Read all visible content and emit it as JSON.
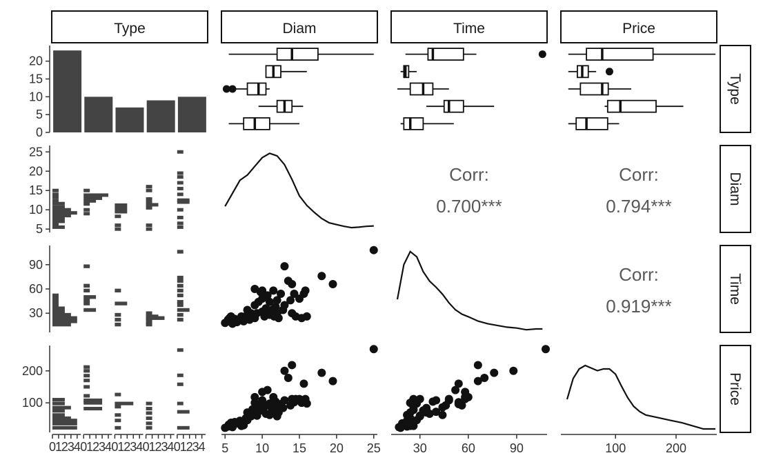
{
  "chart_data": {
    "type": "pairs",
    "variables": [
      "Type",
      "Diam",
      "Time",
      "Price"
    ],
    "colors": {
      "bar": "#444444",
      "point": "#111111",
      "line": "#111111",
      "corr_text": "#595959"
    },
    "type_counts": {
      "categories": [
        "0",
        "1",
        "2",
        "3",
        "4"
      ],
      "values": [
        23,
        10,
        7,
        9,
        10
      ],
      "ylim": [
        0,
        24
      ],
      "yticks": [
        "0",
        "5",
        "10",
        "15",
        "20"
      ]
    },
    "boxplots": {
      "Diam": {
        "xlim": [
          4.7,
          25.3
        ],
        "xticks": [
          "5",
          "10",
          "15",
          "20",
          "25"
        ],
        "boxes": [
          {
            "q1": 7.5,
            "median": 9,
            "q3": 11,
            "lo": 5.5,
            "hi": 15,
            "outliers": []
          },
          {
            "q1": 12,
            "median": 13,
            "q3": 14,
            "lo": 9.5,
            "hi": 15.5,
            "outliers": []
          },
          {
            "q1": 8,
            "median": 9.5,
            "q3": 10.5,
            "lo": 5,
            "hi": 11,
            "outliers": [
              6,
              5.2
            ]
          },
          {
            "q1": 10.5,
            "median": 11.5,
            "q3": 12.5,
            "lo": 10.5,
            "hi": 16,
            "outliers": []
          },
          {
            "q1": 12,
            "median": 14,
            "q3": 17.5,
            "lo": 5.5,
            "hi": 25,
            "outliers": []
          }
        ]
      },
      "Time": {
        "xlim": [
          13,
          108
        ],
        "xticks": [
          "30",
          "60",
          "90"
        ],
        "boxes": [
          {
            "q1": 20,
            "median": 24,
            "q3": 32,
            "lo": 18,
            "hi": 51,
            "outliers": []
          },
          {
            "q1": 45,
            "median": 48,
            "q3": 57,
            "lo": 34,
            "hi": 76,
            "outliers": []
          },
          {
            "q1": 24,
            "median": 32,
            "q3": 38,
            "lo": 16,
            "hi": 48,
            "outliers": []
          },
          {
            "q1": 20,
            "median": 21,
            "q3": 23,
            "lo": 18,
            "hi": 28,
            "outliers": []
          },
          {
            "q1": 35,
            "median": 38,
            "q3": 57,
            "lo": 21,
            "hi": 65,
            "outliers": [
              106
            ]
          }
        ]
      },
      "Price": {
        "xlim": [
          12,
          265
        ],
        "xticks": [
          "100",
          "200"
        ],
        "boxes": [
          {
            "q1": 35,
            "median": 52,
            "q3": 87,
            "lo": 22,
            "hi": 106,
            "outliers": []
          },
          {
            "q1": 87,
            "median": 108,
            "q3": 167,
            "lo": 82,
            "hi": 212,
            "outliers": []
          },
          {
            "q1": 42,
            "median": 78,
            "q3": 88,
            "lo": 22,
            "hi": 126,
            "outliers": []
          },
          {
            "q1": 37,
            "median": 45,
            "q3": 55,
            "lo": 22,
            "hi": 68,
            "outliers": [
              90
            ]
          },
          {
            "q1": 52,
            "median": 78,
            "q3": 162,
            "lo": 22,
            "hi": 265,
            "outliers": []
          }
        ]
      }
    },
    "axes": {
      "Diam": {
        "ylim": [
          4.5,
          26.3
        ],
        "yticks": [
          "5",
          "10",
          "15",
          "20",
          "25"
        ]
      },
      "Time": {
        "ylim": [
          8,
          112
        ],
        "yticks": [
          "30",
          "60",
          "90"
        ]
      },
      "Price": {
        "ylim": [
          12,
          275
        ],
        "yticks": [
          "100",
          "200"
        ]
      }
    },
    "correlations": [
      {
        "row": "Diam",
        "col": "Time",
        "label": "Corr:",
        "value": "0.700***"
      },
      {
        "row": "Diam",
        "col": "Price",
        "label": "Corr:",
        "value": "0.794***"
      },
      {
        "row": "Time",
        "col": "Price",
        "label": "Corr:",
        "value": "0.919***"
      }
    ],
    "densities": {
      "Diam": [
        [
          5,
          0.3
        ],
        [
          6,
          0.45
        ],
        [
          7,
          0.6
        ],
        [
          8,
          0.66
        ],
        [
          9,
          0.76
        ],
        [
          10,
          0.86
        ],
        [
          11,
          0.91
        ],
        [
          12,
          0.88
        ],
        [
          13,
          0.78
        ],
        [
          14,
          0.61
        ],
        [
          15,
          0.42
        ],
        [
          16,
          0.31
        ],
        [
          17,
          0.23
        ],
        [
          18,
          0.16
        ],
        [
          19,
          0.11
        ],
        [
          20,
          0.09
        ],
        [
          21,
          0.07
        ],
        [
          22,
          0.055
        ],
        [
          23,
          0.06
        ],
        [
          24,
          0.07
        ],
        [
          25,
          0.075
        ]
      ],
      "Time": [
        [
          16,
          0.38
        ],
        [
          20,
          0.78
        ],
        [
          24,
          0.93
        ],
        [
          28,
          0.87
        ],
        [
          32,
          0.7
        ],
        [
          36,
          0.59
        ],
        [
          40,
          0.52
        ],
        [
          44,
          0.44
        ],
        [
          48,
          0.34
        ],
        [
          52,
          0.26
        ],
        [
          56,
          0.21
        ],
        [
          60,
          0.18
        ],
        [
          66,
          0.13
        ],
        [
          72,
          0.1
        ],
        [
          78,
          0.08
        ],
        [
          84,
          0.06
        ],
        [
          90,
          0.05
        ],
        [
          96,
          0.03
        ],
        [
          102,
          0.04
        ],
        [
          106,
          0.04
        ]
      ],
      "Price": [
        [
          20,
          0.38
        ],
        [
          30,
          0.62
        ],
        [
          40,
          0.73
        ],
        [
          50,
          0.77
        ],
        [
          60,
          0.74
        ],
        [
          70,
          0.71
        ],
        [
          80,
          0.73
        ],
        [
          90,
          0.73
        ],
        [
          100,
          0.67
        ],
        [
          110,
          0.53
        ],
        [
          120,
          0.4
        ],
        [
          130,
          0.3
        ],
        [
          140,
          0.24
        ],
        [
          150,
          0.2
        ],
        [
          170,
          0.17
        ],
        [
          190,
          0.14
        ],
        [
          210,
          0.11
        ],
        [
          230,
          0.07
        ],
        [
          245,
          0.04
        ],
        [
          265,
          0.04
        ]
      ]
    },
    "histograms": {
      "bin_width": {
        "Diam": 0.9,
        "Time": 4.6,
        "Price": 11
      },
      "xlim_counts": [
        0,
        4.6
      ],
      "xticks": [
        "0",
        "1",
        "2",
        "3",
        "4"
      ],
      "Diam": [
        [
          [
            5.5,
            2
          ],
          [
            6.2,
            1
          ],
          [
            7,
            2
          ],
          [
            7.8,
            2
          ],
          [
            8.5,
            3
          ],
          [
            9.2,
            4
          ],
          [
            10,
            3
          ],
          [
            10.7,
            2
          ],
          [
            11.6,
            2
          ],
          [
            12.4,
            1
          ],
          [
            13.3,
            1
          ],
          [
            14,
            1
          ],
          [
            15,
            1
          ]
        ],
        [
          [
            9,
            1
          ],
          [
            10,
            1
          ],
          [
            11.5,
            1
          ],
          [
            12.3,
            2
          ],
          [
            13,
            3
          ],
          [
            13.8,
            4
          ],
          [
            15,
            1
          ]
        ],
        [
          [
            5,
            1
          ],
          [
            6,
            1
          ],
          [
            8.3,
            1
          ],
          [
            9.5,
            2
          ],
          [
            10.4,
            2
          ],
          [
            11.2,
            2
          ]
        ],
        [
          [
            5,
            1
          ],
          [
            6,
            1
          ],
          [
            10.5,
            1
          ],
          [
            11.3,
            2
          ],
          [
            12,
            1
          ],
          [
            12.8,
            1
          ],
          [
            15,
            1
          ],
          [
            16,
            1
          ]
        ],
        [
          [
            5.5,
            1
          ],
          [
            6.5,
            1
          ],
          [
            8,
            1
          ],
          [
            10,
            1
          ],
          [
            12,
            2
          ],
          [
            12.5,
            2
          ],
          [
            14,
            1
          ],
          [
            15.5,
            1
          ],
          [
            17,
            1
          ],
          [
            18.5,
            1
          ],
          [
            19.5,
            1
          ],
          [
            25,
            1
          ]
        ]
      ],
      "Time": [
        [
          [
            16,
            3
          ],
          [
            20,
            4
          ],
          [
            24,
            4
          ],
          [
            28,
            3
          ],
          [
            32,
            2
          ],
          [
            36,
            2
          ],
          [
            40,
            1
          ],
          [
            44,
            1
          ],
          [
            48,
            1
          ],
          [
            52,
            1
          ]
        ],
        [
          [
            34,
            2
          ],
          [
            42,
            1
          ],
          [
            46,
            1
          ],
          [
            50,
            2
          ],
          [
            58,
            1
          ],
          [
            64,
            1
          ],
          [
            88,
            1
          ]
        ],
        [
          [
            16,
            1
          ],
          [
            22,
            1
          ],
          [
            28,
            1
          ],
          [
            42,
            2
          ],
          [
            58,
            1
          ]
        ],
        [
          [
            16,
            1
          ],
          [
            18,
            1
          ],
          [
            22,
            1
          ],
          [
            24,
            3
          ],
          [
            26,
            2
          ],
          [
            30,
            1
          ]
        ],
        [
          [
            22,
            1
          ],
          [
            28,
            1
          ],
          [
            34,
            2
          ],
          [
            40,
            1
          ],
          [
            44,
            1
          ],
          [
            52,
            1
          ],
          [
            58,
            1
          ],
          [
            64,
            1
          ],
          [
            70,
            1
          ],
          [
            74,
            1
          ],
          [
            106,
            1
          ]
        ]
      ],
      "Price": [
        [
          [
            22,
            4
          ],
          [
            35,
            4
          ],
          [
            45,
            4
          ],
          [
            52,
            3
          ],
          [
            62,
            2
          ],
          [
            75,
            2
          ],
          [
            85,
            3
          ],
          [
            98,
            2
          ],
          [
            110,
            2
          ]
        ],
        [
          [
            82,
            3
          ],
          [
            100,
            3
          ],
          [
            108,
            3
          ],
          [
            122,
            1
          ],
          [
            150,
            1
          ],
          [
            170,
            1
          ],
          [
            185,
            1
          ],
          [
            200,
            1
          ],
          [
            212,
            1
          ]
        ],
        [
          [
            22,
            1
          ],
          [
            45,
            1
          ],
          [
            62,
            1
          ],
          [
            88,
            1
          ],
          [
            98,
            3
          ],
          [
            126,
            1
          ]
        ],
        [
          [
            22,
            1
          ],
          [
            36,
            1
          ],
          [
            52,
            1
          ],
          [
            68,
            1
          ],
          [
            82,
            1
          ],
          [
            98,
            1
          ]
        ],
        [
          [
            22,
            2
          ],
          [
            72,
            2
          ],
          [
            98,
            1
          ],
          [
            158,
            1
          ],
          [
            186,
            1
          ],
          [
            265,
            1
          ]
        ]
      ]
    },
    "scatter": [
      {
        "diam": 5,
        "time": 18,
        "price": 22
      },
      {
        "diam": 5.4,
        "time": 22,
        "price": 26
      },
      {
        "diam": 5.5,
        "time": 20,
        "price": 32
      },
      {
        "diam": 5.6,
        "time": 24,
        "price": 28
      },
      {
        "diam": 5.8,
        "time": 26,
        "price": 38
      },
      {
        "diam": 6,
        "time": 21,
        "price": 30
      },
      {
        "diam": 6,
        "time": 17,
        "price": 24
      },
      {
        "diam": 6.3,
        "time": 23,
        "price": 40
      },
      {
        "diam": 6.6,
        "time": 19,
        "price": 36
      },
      {
        "diam": 7,
        "time": 22,
        "price": 44
      },
      {
        "diam": 7.2,
        "time": 26,
        "price": 28
      },
      {
        "diam": 7.5,
        "time": 20,
        "price": 30
      },
      {
        "diam": 7.8,
        "time": 24,
        "price": 52
      },
      {
        "diam": 8,
        "time": 28,
        "price": 46
      },
      {
        "diam": 8,
        "time": 34,
        "price": 70
      },
      {
        "diam": 8.3,
        "time": 22,
        "price": 62
      },
      {
        "diam": 8.5,
        "time": 30,
        "price": 58
      },
      {
        "diam": 8.7,
        "time": 26,
        "price": 80
      },
      {
        "diam": 9,
        "time": 40,
        "price": 72
      },
      {
        "diam": 9,
        "time": 60,
        "price": 118
      },
      {
        "diam": 9,
        "time": 24,
        "price": 100
      },
      {
        "diam": 9.3,
        "time": 30,
        "price": 60
      },
      {
        "diam": 9.5,
        "time": 44,
        "price": 86
      },
      {
        "diam": 9.8,
        "time": 56,
        "price": 92
      },
      {
        "diam": 10,
        "time": 32,
        "price": 76
      },
      {
        "diam": 10,
        "time": 48,
        "price": 108
      },
      {
        "diam": 10,
        "time": 58,
        "price": 134
      },
      {
        "diam": 10.3,
        "time": 26,
        "price": 88
      },
      {
        "diam": 10.5,
        "time": 36,
        "price": 66
      },
      {
        "diam": 10.7,
        "time": 52,
        "price": 140
      },
      {
        "diam": 11,
        "time": 28,
        "price": 98
      },
      {
        "diam": 11,
        "time": 44,
        "price": 62
      },
      {
        "diam": 11.3,
        "time": 34,
        "price": 82
      },
      {
        "diam": 11.5,
        "time": 58,
        "price": 118
      },
      {
        "diam": 11.6,
        "time": 26,
        "price": 78
      },
      {
        "diam": 11.8,
        "time": 38,
        "price": 104
      },
      {
        "diam": 12,
        "time": 30,
        "price": 58
      },
      {
        "diam": 12,
        "time": 46,
        "price": 92
      },
      {
        "diam": 12.2,
        "time": 24,
        "price": 70
      },
      {
        "diam": 12.5,
        "time": 54,
        "price": 96
      },
      {
        "diam": 12.8,
        "time": 34,
        "price": 84
      },
      {
        "diam": 13,
        "time": 88,
        "price": 200
      },
      {
        "diam": 13,
        "time": 40,
        "price": 108
      },
      {
        "diam": 13.5,
        "time": 70,
        "price": 178
      },
      {
        "diam": 13.8,
        "time": 46,
        "price": 92
      },
      {
        "diam": 14,
        "time": 66,
        "price": 218
      },
      {
        "diam": 14,
        "time": 30,
        "price": 112
      },
      {
        "diam": 14.3,
        "time": 54,
        "price": 102
      },
      {
        "diam": 14.5,
        "time": 26,
        "price": 112
      },
      {
        "diam": 15,
        "time": 48,
        "price": 112
      },
      {
        "diam": 15.3,
        "time": 24,
        "price": 100
      },
      {
        "diam": 15.6,
        "time": 54,
        "price": 160
      },
      {
        "diam": 15.8,
        "time": 58,
        "price": 112
      },
      {
        "diam": 16,
        "time": 26,
        "price": 98
      },
      {
        "diam": 18,
        "time": 76,
        "price": 194
      },
      {
        "diam": 19.5,
        "time": 66,
        "price": 168
      },
      {
        "diam": 25,
        "time": 108,
        "price": 268
      }
    ]
  }
}
